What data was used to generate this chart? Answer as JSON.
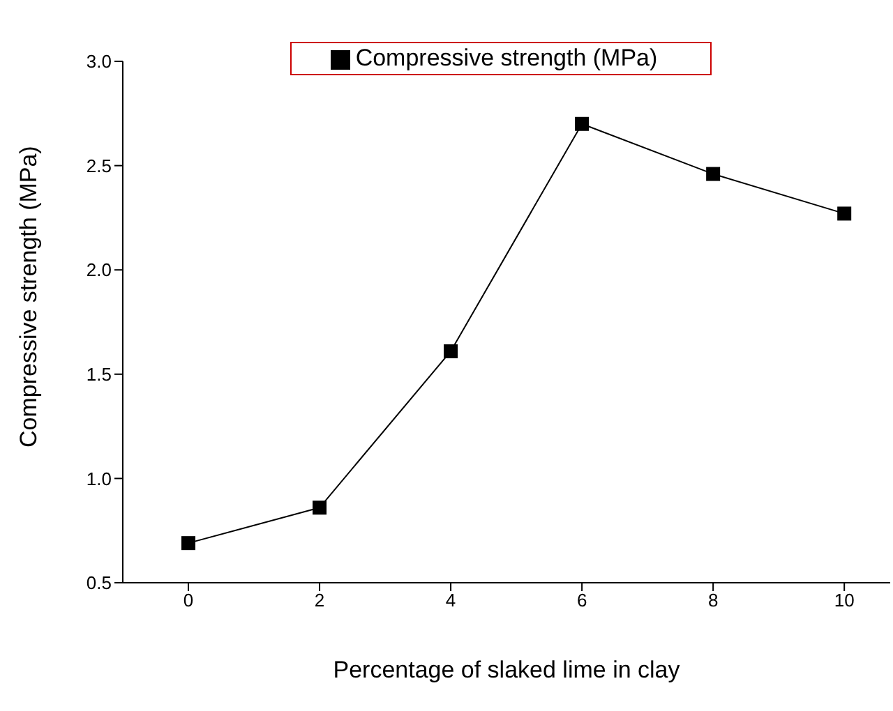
{
  "chart_data": {
    "type": "line",
    "xlabel": "Percentage of slaked lime in clay",
    "ylabel": "Compressive strength (MPa)",
    "x": [
      0,
      2,
      4,
      6,
      8,
      10
    ],
    "series": [
      {
        "name": "Compressive strength (MPa)",
        "color": "#000000",
        "values": [
          0.69,
          0.86,
          1.61,
          2.7,
          2.46,
          2.27
        ]
      }
    ],
    "xlim": [
      -1,
      10.7
    ],
    "xticks": [
      0,
      2,
      4,
      6,
      8,
      10
    ],
    "ylim": [
      0.5,
      3.0
    ],
    "yticks": [
      0.5,
      {
        "value": 1,
        "label": "1.0"
      },
      1.5,
      {
        "value": 2,
        "label": "2.0"
      },
      2.5,
      {
        "value": 3,
        "label": "3.0"
      }
    ],
    "marker": "square",
    "line_style": "solid",
    "legend": "top",
    "grid": false
  }
}
